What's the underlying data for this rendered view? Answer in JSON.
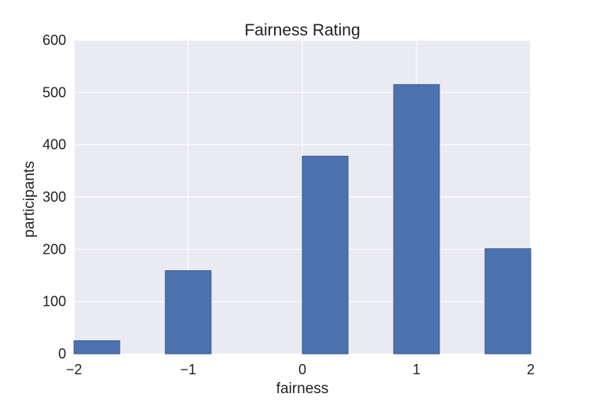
{
  "chart_data": {
    "type": "bar",
    "title": "Fairness Rating",
    "xlabel": "fairness",
    "ylabel": "participants",
    "xlim": [
      -2,
      2
    ],
    "ylim": [
      0,
      600
    ],
    "x_ticks": [
      -2,
      -1,
      0,
      1,
      2
    ],
    "x_tick_labels": [
      "−2",
      "−1",
      "0",
      "1",
      "2"
    ],
    "y_ticks": [
      0,
      100,
      200,
      300,
      400,
      500,
      600
    ],
    "y_tick_labels": [
      "0",
      "100",
      "200",
      "300",
      "400",
      "500",
      "600"
    ],
    "bin_width": 0.4,
    "bins": [
      {
        "x_start": -2.0,
        "x_end": -1.6,
        "value": 25
      },
      {
        "x_start": -1.2,
        "x_end": -0.8,
        "value": 159
      },
      {
        "x_start": 0.0,
        "x_end": 0.4,
        "value": 378
      },
      {
        "x_start": 0.8,
        "x_end": 1.2,
        "value": 515
      },
      {
        "x_start": 1.6,
        "x_end": 2.0,
        "value": 201
      }
    ],
    "grid": true,
    "colors": {
      "plot_background": "#eaeaf2",
      "bar_fill": "#4c72b0",
      "bar_edge": "#3a5a8c",
      "grid": "#ffffff"
    }
  }
}
